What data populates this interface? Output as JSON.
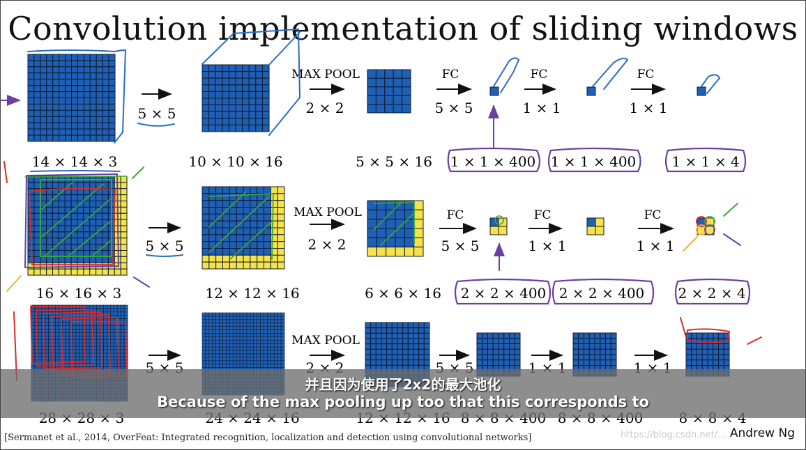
{
  "title": "Convolution implementation of sliding windows",
  "rows": [
    {
      "id": "row1",
      "input_label": "14 × 14 × 3",
      "conv_label": "5 × 5",
      "conv_out_label": "10 × 10 × 16",
      "pool_label": "MAX POOL",
      "pool_size": "2 × 2",
      "pool_out_label": "5 × 5 × 16",
      "fc1_label": "FC",
      "fc1_size": "5 × 5",
      "fc1_out_label": "1 × 1 × 400",
      "fc2_label": "FC",
      "fc2_size": "1 × 1",
      "fc2_out_label": "1 × 1 × 400",
      "fc3_label": "FC",
      "fc3_size": "1 × 1",
      "fc3_out_label": "1 × 1 × 4"
    },
    {
      "id": "row2",
      "input_label": "16 × 16 × 3",
      "conv_label": "5 × 5",
      "conv_out_label": "12 × 12 × 16",
      "pool_label": "MAX POOL",
      "pool_size": "2 × 2",
      "pool_out_label": "6 × 6 × 16",
      "fc1_label": "FC",
      "fc1_size": "5 × 5",
      "fc1_out_label": "2 × 2 × 400",
      "fc2_label": "FC",
      "fc2_size": "1 × 1",
      "fc2_out_label": "2 × 2 × 400",
      "fc3_label": "FC",
      "fc3_size": "1 × 1",
      "fc3_out_label": "2 × 2 × 4"
    },
    {
      "id": "row3",
      "input_label": "28 × 28 × 3",
      "conv_label": "5 × 5",
      "conv_out_label": "24 × 24 × 16",
      "pool_label": "MAX POOL",
      "pool_size": "2 × 2",
      "pool_out_label": "12 × 12 × 16",
      "fc1_size": "5 × 5",
      "fc1_out_label": "8 × 8 × 400",
      "fc2_size": "1 × 1",
      "fc2_out_label": "8 × 8 × 400",
      "fc3_size": "1 × 1",
      "fc3_out_label": "8 × 8 × 4"
    }
  ],
  "colors": {
    "cell_blue": "#1f5fb4",
    "cell_yellow": "#f7e24a",
    "pen_blue": "#2b6cc4",
    "pen_purple": "#6a3fa0",
    "pen_green": "#3aa63a",
    "pen_red": "#d82a2a",
    "pen_orange": "#e8b53a"
  },
  "subtitle_zh": "并且因为使用了2x2的最大池化",
  "subtitle_en": "Because of the max pooling up too that this corresponds to",
  "citation": "[Sermanet et al., 2014, OverFeat: Integrated recognition, localization and detection using convolutional networks]",
  "watermark": "https://blog.csdn.net/...",
  "author": "Andrew Ng"
}
